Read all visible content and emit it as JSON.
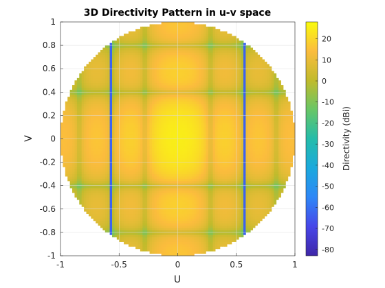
{
  "chart_data": {
    "type": "heatmap",
    "title": "3D Directivity Pattern in u-v space",
    "xlabel": "U",
    "ylabel": "V",
    "xlim": [
      -1,
      1
    ],
    "ylim": [
      -1,
      1
    ],
    "x_ticks": [
      "-1",
      "-0.5",
      "0",
      "0.5",
      "1"
    ],
    "y_ticks": [
      "1",
      "0.8",
      "0.6",
      "0.4",
      "0.2",
      "0",
      "-0.2",
      "-0.4",
      "-0.6",
      "-0.8",
      "-1"
    ],
    "colorbar": {
      "label": "Directivity (dBi)",
      "range": [
        -83,
        28
      ],
      "ticks": [
        "20",
        "10",
        "0",
        "-10",
        "-20",
        "-30",
        "-40",
        "-50",
        "-60",
        "-70",
        "-80"
      ],
      "colormap": "parula"
    },
    "pattern": {
      "domain": "unit circle u^2+v^2<=1",
      "peak_dbi": 25,
      "peak_at": [
        0,
        0
      ],
      "null_lines_u": [
        -0.57,
        -0.28,
        0.28,
        0.57
      ],
      "null_lines_v": [
        -0.8,
        -0.4,
        0.4,
        0.8
      ],
      "min_dbi": -83
    }
  }
}
